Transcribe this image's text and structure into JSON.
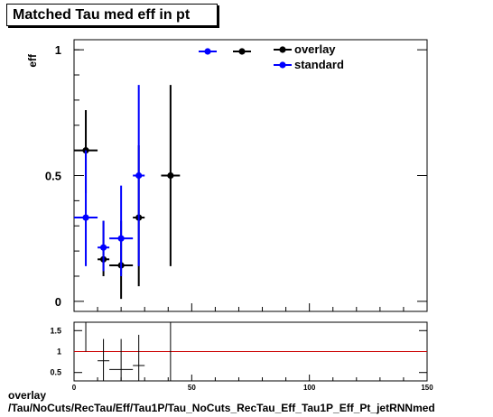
{
  "title": "Matched Tau med eff in pt",
  "footer": {
    "line1": "overlay",
    "line2": "/Tau/NoCuts/RecTau/Eff/Tau1P/Tau_NoCuts_RecTau_Eff_Tau1P_Eff_Pt_jetRNNmed"
  },
  "colors": {
    "overlay": "#000000",
    "standard": "#0000ff",
    "ratio_line": "#cc0000"
  },
  "chart_data": [
    {
      "type": "scatter",
      "panel": "main",
      "ylabel": "eff",
      "xlim": [
        0,
        150
      ],
      "ylim": [
        -0.04,
        1.04
      ],
      "yticks": [
        0,
        0.5,
        1
      ],
      "ytick_labels": [
        "0",
        "0.5",
        "1"
      ],
      "grid": false,
      "legend": {
        "placement": "top-center",
        "entries": [
          "overlay",
          "standard"
        ]
      },
      "series": [
        {
          "name": "overlay",
          "points": [
            {
              "x": 5,
              "xerr": 5,
              "y": 0.6,
              "ylo": 0.43,
              "yhi": 0.76
            },
            {
              "x": 12.5,
              "xerr": 2.5,
              "y": 0.167,
              "ylo": 0.1,
              "yhi": 0.32
            },
            {
              "x": 20,
              "xerr": 5,
              "y": 0.143,
              "ylo": 0.01,
              "yhi": 0.32
            },
            {
              "x": 27.5,
              "xerr": 2.5,
              "y": 0.333,
              "ylo": 0.06,
              "yhi": 0.62
            },
            {
              "x": 41,
              "xerr": 4,
              "y": 0.5,
              "ylo": 0.14,
              "yhi": 0.86
            }
          ]
        },
        {
          "name": "standard",
          "points": [
            {
              "x": 5,
              "xerr": 5,
              "y": 0.333,
              "ylo": 0.14,
              "yhi": 0.6
            },
            {
              "x": 12.5,
              "xerr": 2.5,
              "y": 0.214,
              "ylo": 0.12,
              "yhi": 0.32
            },
            {
              "x": 20,
              "xerr": 5,
              "y": 0.25,
              "ylo": 0.1,
              "yhi": 0.46
            },
            {
              "x": 27.5,
              "xerr": 2.5,
              "y": 0.5,
              "ylo": 0.14,
              "yhi": 0.86
            }
          ]
        }
      ]
    },
    {
      "type": "scatter",
      "panel": "ratio",
      "xlim": [
        0,
        150
      ],
      "ylim": [
        0.3,
        1.7
      ],
      "xticks": [
        0,
        50,
        100,
        150
      ],
      "xtick_labels": [
        "0",
        "50",
        "100",
        "150"
      ],
      "yticks": [
        0.5,
        1,
        1.5
      ],
      "ytick_labels": [
        "0.5",
        "1",
        "1.5"
      ],
      "reference_line": 1,
      "points": [
        {
          "x": 5,
          "xerr": 5,
          "y": 1.8,
          "ylo": 1.0,
          "yhi": 3.0
        },
        {
          "x": 12.5,
          "xerr": 2.5,
          "y": 0.78,
          "ylo": 0.3,
          "yhi": 1.3
        },
        {
          "x": 20,
          "xerr": 5,
          "y": 0.571,
          "ylo": 0.3,
          "yhi": 1.3
        },
        {
          "x": 27.5,
          "xerr": 2.5,
          "y": 0.667,
          "ylo": 0.3,
          "yhi": 1.4
        },
        {
          "x": 41,
          "xerr": 0,
          "y": 1.6,
          "ylo": 0.3,
          "yhi": 3.0
        }
      ]
    }
  ]
}
